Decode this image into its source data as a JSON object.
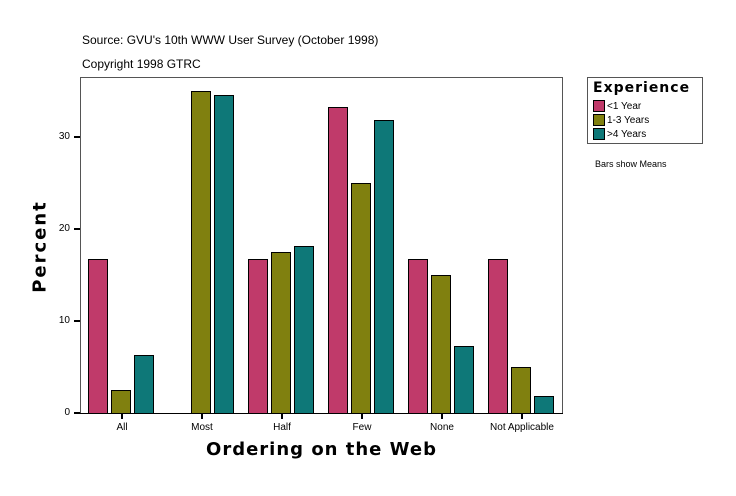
{
  "header": {
    "source": "Source: GVU's 10th WWW User Survey (October 1998)",
    "copyright": "Copyright 1998 GTRC"
  },
  "legend": {
    "title": "Experience",
    "items": [
      {
        "label": "<1 Year",
        "color": "#C03A6A"
      },
      {
        "label": "1-3 Years",
        "color": "#80800F"
      },
      {
        "label": ">4 Years",
        "color": "#0E7878"
      }
    ]
  },
  "note": "Bars show Means",
  "chart_data": {
    "type": "bar",
    "title": "",
    "xlabel": "Ordering on the Web",
    "ylabel": "Percent",
    "ylim": [
      0,
      30
    ],
    "yticks": [
      0,
      10,
      20,
      30
    ],
    "categories": [
      "All",
      "Most",
      "Half",
      "Few",
      "None",
      "Not Applicable"
    ],
    "series": [
      {
        "name": "<1 Year",
        "color": "#C03A6A",
        "values": [
          16.7,
          0,
          16.7,
          33.3,
          16.7,
          16.7
        ]
      },
      {
        "name": "1-3 Years",
        "color": "#80800F",
        "values": [
          2.5,
          35.0,
          17.5,
          25.0,
          15.0,
          5.0
        ]
      },
      {
        "name": ">4 Years",
        "color": "#0E7878",
        "values": [
          6.3,
          34.6,
          18.2,
          31.8,
          7.3,
          1.8
        ]
      }
    ],
    "legend_position": "right",
    "grid": false
  }
}
